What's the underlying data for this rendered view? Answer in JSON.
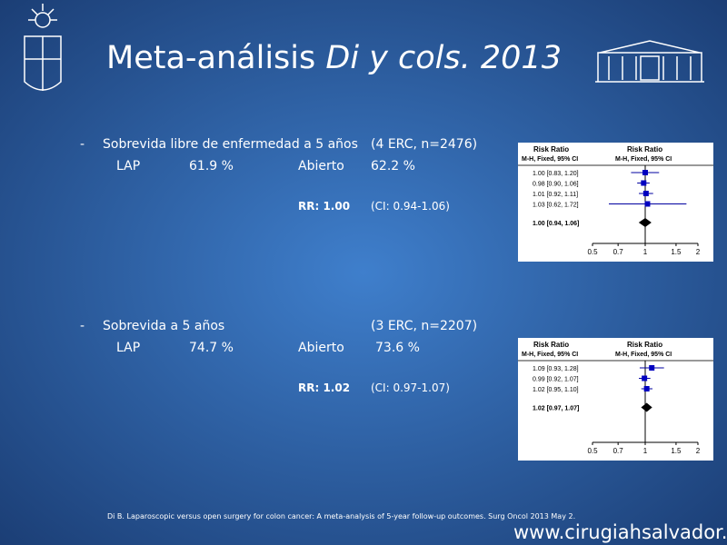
{
  "title": {
    "main": "Meta-análisis ",
    "italic": "Di y cols. 2013"
  },
  "sections": [
    {
      "bullet": "-",
      "heading": "Sobrevida libre de enfermedad a 5 años",
      "note": "(4 ERC, n=2476)",
      "row": [
        "LAP",
        "61.9 %",
        "Abierto",
        "62.2 %"
      ],
      "rr": "RR: 1.00",
      "ci": "(CI: 0.94-1.06)"
    },
    {
      "bullet": "-",
      "heading": "Sobrevida a 5 años",
      "note": "(3 ERC, n=2207)",
      "row": [
        "LAP",
        "74.7 %",
        "Abierto",
        "73.6 %"
      ],
      "rr": "RR: 1.02",
      "ci": "(CI: 0.97-1.07)"
    }
  ],
  "forest_plots": [
    {
      "header": [
        "Risk Ratio",
        "Risk Ratio"
      ],
      "subheader": [
        "M-H, Fixed, 95% CI",
        "M-H, Fixed, 95% CI"
      ],
      "rows": [
        "1.00 [0.83, 1.20]",
        "0.98 [0.90, 1.06]",
        "1.01 [0.92, 1.11]",
        "1.03 [0.62, 1.72]"
      ],
      "total": "1.00 [0.94, 1.06]",
      "axis_ticks": [
        "0.5",
        "0.7",
        "1",
        "1.5",
        "2"
      ]
    },
    {
      "header": [
        "Risk Ratio",
        "Risk Ratio"
      ],
      "subheader": [
        "M-H, Fixed, 95% CI",
        "M-H, Fixed, 95% CI"
      ],
      "rows": [
        "1.09 [0.93, 1.28]",
        "0.99 [0.92, 1.07]",
        "1.02 [0.95, 1.10]"
      ],
      "total": "1.02 [0.97, 1.07]",
      "axis_ticks": [
        "0.5",
        "0.7",
        "1",
        "1.5",
        "2"
      ]
    }
  ],
  "citation": "Di B. Laparoscopic versus open surgery for colon cancer: A meta-analysis of 5-year follow-up outcomes. Surg Oncol 2013 May 2.",
  "website": "www.cirugiahsalvador.cl"
}
